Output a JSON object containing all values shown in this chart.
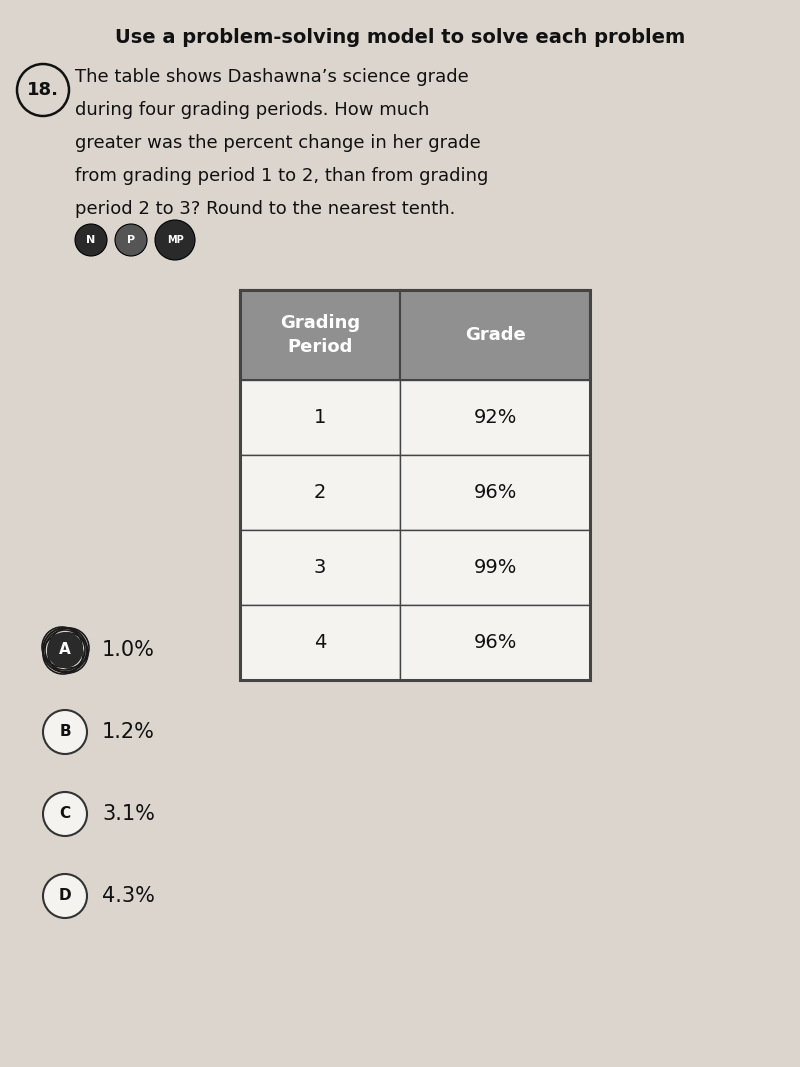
{
  "title_top": "Use a problem-solving model to solve each problem",
  "problem_number": "18.",
  "problem_text_line1": "The table shows Dashawna’s science grade",
  "problem_text_line2": "during four grading periods. How much",
  "problem_text_line3": "greater was the percent change in her grade",
  "problem_text_line4": "from grading period 1 to 2, than from grading",
  "problem_text_line5": "period 2 to 3? Round to the nearest tenth.",
  "badges": [
    "N",
    "P",
    "MP"
  ],
  "table_headers": [
    "Grading\nPeriod",
    "Grade"
  ],
  "table_data": [
    [
      "1",
      "92%"
    ],
    [
      "2",
      "96%"
    ],
    [
      "3",
      "99%"
    ],
    [
      "4",
      "96%"
    ]
  ],
  "answer_choices": [
    {
      "letter": "A",
      "text": "1.0%",
      "selected": true
    },
    {
      "letter": "B",
      "text": "1.2%",
      "selected": false
    },
    {
      "letter": "C",
      "text": "3.1%",
      "selected": false
    },
    {
      "letter": "D",
      "text": "4.3%",
      "selected": false
    }
  ],
  "page_bg": "#dbd5cd",
  "table_header_bg": "#909090",
  "table_header_text": "white",
  "table_cell_bg": "#f5f3f0",
  "table_border_color": "#444444",
  "text_color": "#111111",
  "title_fontsize": 14,
  "body_fontsize": 13,
  "choice_fontsize": 14,
  "table_fontsize": 13
}
